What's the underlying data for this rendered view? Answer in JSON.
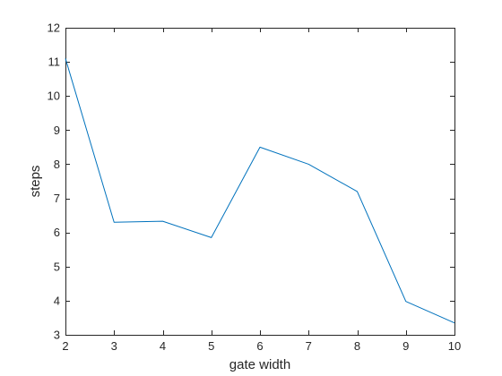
{
  "chart_data": {
    "type": "line",
    "title": "",
    "xlabel": "gate width",
    "ylabel": "steps",
    "xlim": [
      2,
      10
    ],
    "ylim": [
      3,
      12
    ],
    "xticks": [
      2,
      3,
      4,
      5,
      6,
      7,
      8,
      9,
      10
    ],
    "yticks": [
      3,
      4,
      5,
      6,
      7,
      8,
      9,
      10,
      11,
      12
    ],
    "grid": false,
    "box": true,
    "series": [
      {
        "color": "#0072BD",
        "x": [
          2,
          3,
          4,
          5,
          6,
          7,
          8,
          9,
          10
        ],
        "y": [
          11.1,
          6.3,
          6.33,
          5.85,
          8.5,
          8.0,
          7.2,
          3.98,
          3.35
        ]
      }
    ]
  }
}
